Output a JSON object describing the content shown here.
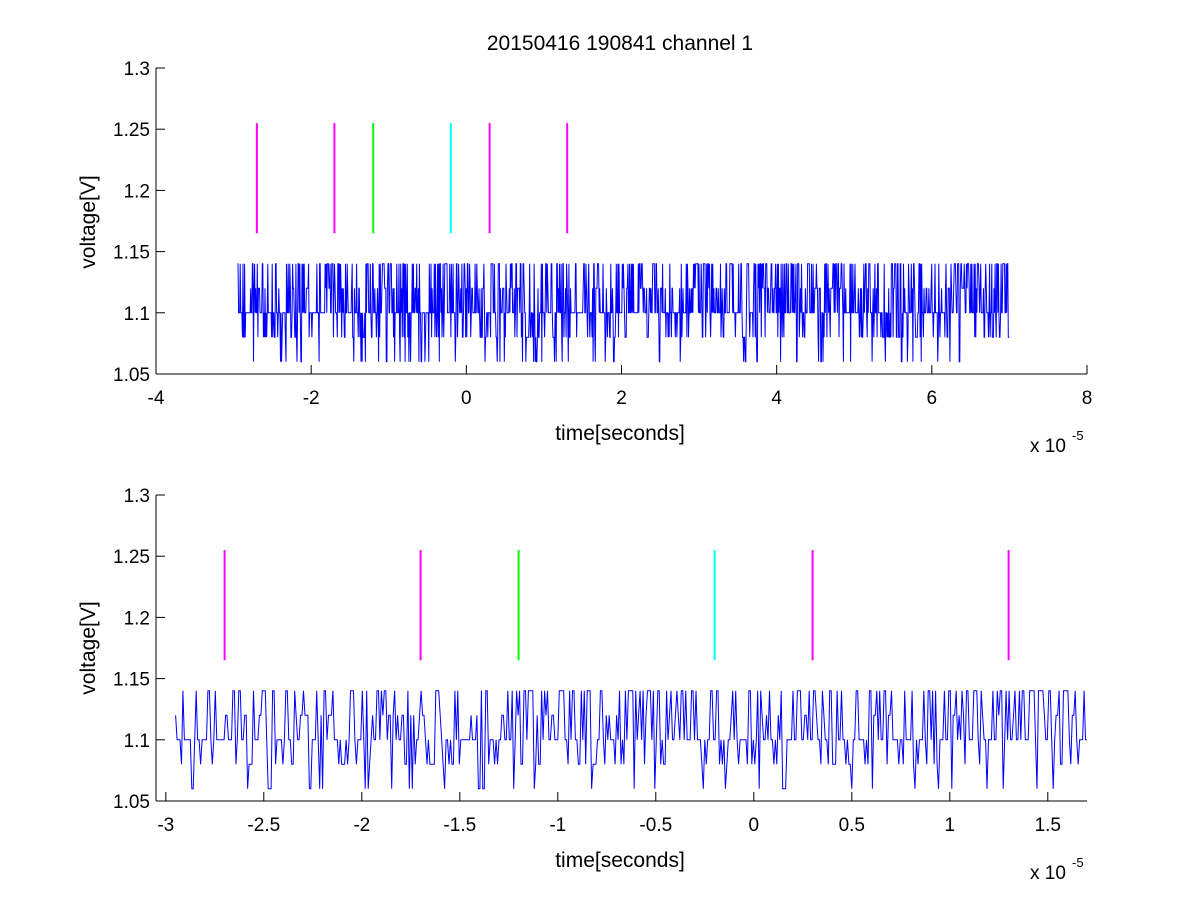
{
  "figure_title": "20150416 190841 channel 1",
  "chart_data": [
    {
      "type": "line",
      "title": "20150416 190841 channel 1",
      "xlabel": "time[seconds]",
      "ylabel": "voltage[V]",
      "x_exponent_label": "x 10",
      "x_exponent": "-5",
      "xlim": [
        -4,
        8
      ],
      "ylim": [
        1.05,
        1.3
      ],
      "xticks": [
        -4,
        -2,
        0,
        2,
        4,
        6,
        8
      ],
      "xtick_labels": [
        "-4",
        "-2",
        "0",
        "2",
        "4",
        "6",
        "8"
      ],
      "yticks": [
        1.05,
        1.1,
        1.15,
        1.2,
        1.25,
        1.3
      ],
      "ytick_labels": [
        "1.05",
        "1.1",
        "1.15",
        "1.2",
        "1.25",
        "1.3"
      ],
      "grid": false,
      "series": [
        {
          "color": "#0000ff",
          "x_range": [
            -2.95,
            7.0
          ],
          "baseline": 1.1,
          "levels": [
            1.06,
            1.08,
            1.1,
            1.12,
            1.14
          ],
          "description_values": "noisy signal quantized to 0.02 V steps around 1.10 V"
        }
      ],
      "markers": [
        {
          "x": -2.7,
          "y": [
            1.165,
            1.255
          ],
          "color": "#ff00ff"
        },
        {
          "x": -1.7,
          "y": [
            1.165,
            1.255
          ],
          "color": "#ff00ff"
        },
        {
          "x": -1.2,
          "y": [
            1.165,
            1.255
          ],
          "color": "#00ff00"
        },
        {
          "x": -0.2,
          "y": [
            1.165,
            1.255
          ],
          "color": "#00ffff"
        },
        {
          "x": 0.3,
          "y": [
            1.165,
            1.255
          ],
          "color": "#ff00ff"
        },
        {
          "x": 1.3,
          "y": [
            1.165,
            1.255
          ],
          "color": "#ff00ff"
        }
      ]
    },
    {
      "type": "line",
      "title": "",
      "xlabel": "time[seconds]",
      "ylabel": "voltage[V]",
      "x_exponent_label": "x 10",
      "x_exponent": "-5",
      "xlim": [
        -3.05,
        1.7
      ],
      "ylim": [
        1.05,
        1.3
      ],
      "xticks": [
        -3,
        -2.5,
        -2,
        -1.5,
        -1,
        -0.5,
        0,
        0.5,
        1,
        1.5
      ],
      "xtick_labels": [
        "-3",
        "-2.5",
        "-2",
        "-1.5",
        "-1",
        "-0.5",
        "0",
        "0.5",
        "1",
        "1.5"
      ],
      "yticks": [
        1.05,
        1.1,
        1.15,
        1.2,
        1.25,
        1.3
      ],
      "ytick_labels": [
        "1.05",
        "1.1",
        "1.15",
        "1.2",
        "1.25",
        "1.3"
      ],
      "grid": false,
      "series": [
        {
          "color": "#0000ff",
          "x_range": [
            -2.95,
            1.7
          ],
          "baseline": 1.1,
          "levels": [
            1.06,
            1.08,
            1.1,
            1.12,
            1.14
          ]
        }
      ],
      "markers": [
        {
          "x": -2.7,
          "y": [
            1.165,
            1.255
          ],
          "color": "#ff00ff"
        },
        {
          "x": -1.7,
          "y": [
            1.165,
            1.255
          ],
          "color": "#ff00ff"
        },
        {
          "x": -1.2,
          "y": [
            1.165,
            1.255
          ],
          "color": "#00ff00"
        },
        {
          "x": -0.2,
          "y": [
            1.165,
            1.255
          ],
          "color": "#00ffff"
        },
        {
          "x": 0.3,
          "y": [
            1.165,
            1.255
          ],
          "color": "#ff00ff"
        },
        {
          "x": 1.3,
          "y": [
            1.165,
            1.255
          ],
          "color": "#ff00ff"
        }
      ]
    }
  ]
}
